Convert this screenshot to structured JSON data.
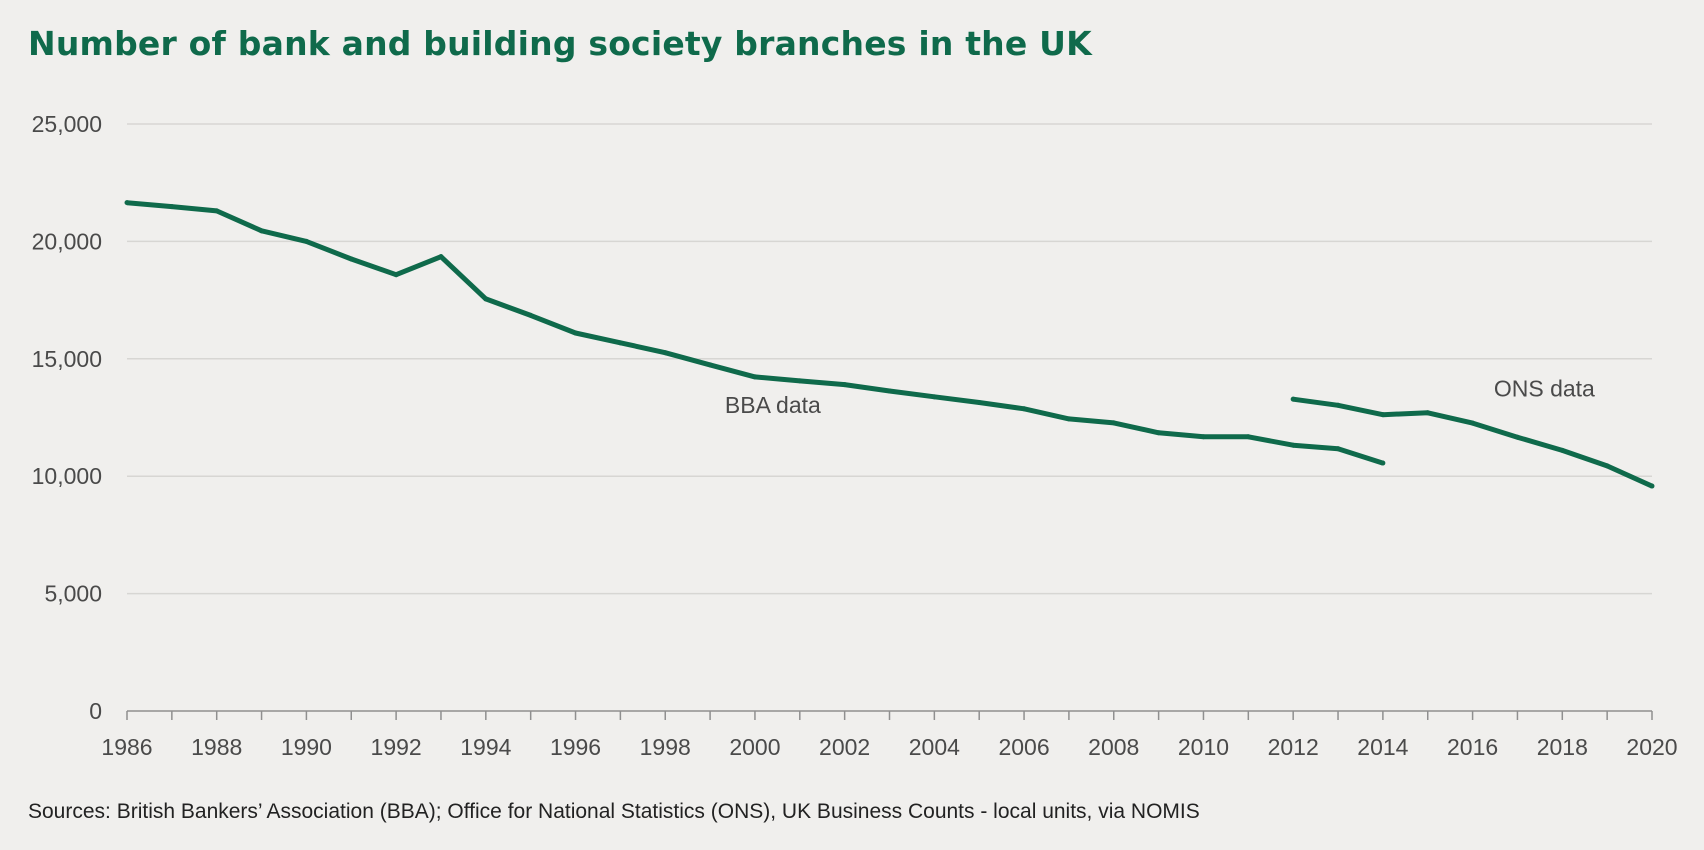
{
  "chart_data": {
    "type": "line",
    "title": "Number of bank and building society branches in the UK",
    "source": "Sources: British Bankers’ Association (BBA); Office for National Statistics (ONS), UK Business Counts - local units, via NOMIS",
    "xlabel": "",
    "ylabel": "",
    "xlim": [
      1986,
      2020
    ],
    "ylim": [
      0,
      25000
    ],
    "x_ticks": [
      1986,
      1988,
      1990,
      1992,
      1994,
      1996,
      1998,
      2000,
      2002,
      2004,
      2006,
      2008,
      2010,
      2012,
      2014,
      2016,
      2018,
      2020
    ],
    "x_tick_labels": [
      "1986",
      "1988",
      "1990",
      "1992",
      "1994",
      "1996",
      "1998",
      "2000",
      "2002",
      "2004",
      "2006",
      "2008",
      "2010",
      "2012",
      "2014",
      "2016",
      "2018",
      "2020"
    ],
    "y_ticks": [
      0,
      5000,
      10000,
      15000,
      20000,
      25000
    ],
    "y_tick_labels": [
      "0",
      "5,000",
      "10,000",
      "15,000",
      "20,000",
      "25,000"
    ],
    "grid": "horizontal",
    "legend": "none",
    "line_color": "#0f6a4b",
    "series": [
      {
        "name": "",
        "x": [
          1986,
          1987,
          1988,
          1989,
          1990,
          1991,
          1992,
          1993,
          1994,
          1995,
          1996,
          1997,
          1998,
          1999,
          2000,
          2001,
          2002,
          2003,
          2004,
          2005,
          2006,
          2007,
          2008,
          2009,
          2010,
          2011,
          2012,
          2013,
          2014
        ],
        "y": [
          21650,
          21480,
          21300,
          20450,
          20000,
          19250,
          18580,
          19350,
          17550,
          16850,
          16100,
          15680,
          15260,
          14740,
          14230,
          14060,
          13900,
          13630,
          13380,
          13140,
          12870,
          12440,
          12270,
          11850,
          11680,
          11680,
          11320,
          11170,
          10560
        ]
      },
      {
        "name": "",
        "x": [
          2012,
          2013,
          2014,
          2015,
          2016,
          2017,
          2018,
          2019,
          2020
        ],
        "y": [
          13280,
          13020,
          12620,
          12700,
          12260,
          11660,
          11100,
          10440,
          9580
        ]
      }
    ],
    "annotations": [
      {
        "text": "BBA data",
        "x": 2000.4,
        "y": 12700
      },
      {
        "text": "ONS data",
        "x": 2017.6,
        "y": 13400
      }
    ]
  }
}
